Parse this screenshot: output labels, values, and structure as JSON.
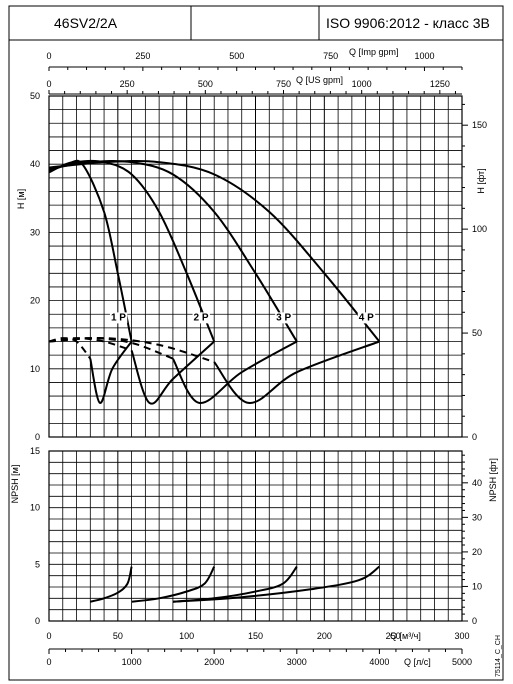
{
  "header": {
    "model": "46SV2/2A",
    "blank": "",
    "standard": "ISO 9906:2012 - класс 3B"
  },
  "axes": {
    "top_imp": {
      "label": "Q [Imp gpm]",
      "ticks": [
        0,
        250,
        500,
        750,
        1000
      ],
      "range": [
        0,
        1100
      ]
    },
    "top_us": {
      "label": "Q [US gpm]",
      "ticks": [
        0,
        250,
        500,
        750,
        1000,
        1250
      ],
      "range": [
        0,
        1320.9
      ]
    },
    "h_m": {
      "label": "H [м]",
      "ticks": [
        0,
        10,
        20,
        30,
        40,
        50
      ],
      "range": [
        0,
        50
      ]
    },
    "h_ft": {
      "label": "H [фт]",
      "ticks": [
        0,
        50,
        100,
        150
      ],
      "range": [
        0,
        164.04
      ]
    },
    "npsh_m": {
      "label": "NPSH [м]",
      "ticks": [
        0,
        5,
        10,
        15
      ],
      "range": [
        0,
        15
      ]
    },
    "npsh_ft": {
      "label": "NPSH [фт]",
      "ticks": [
        0,
        10,
        20,
        30,
        40
      ],
      "range": [
        0,
        49.21
      ]
    },
    "q_m3h": {
      "label": "Q [м³/ч]",
      "ticks": [
        0,
        50,
        100,
        150,
        200,
        250,
        300
      ],
      "range": [
        0,
        300
      ]
    },
    "q_ls": {
      "label": "Q [л/с]",
      "ticks": [
        0,
        1000,
        2000,
        3000,
        4000,
        5000
      ],
      "range": [
        0,
        5000
      ]
    }
  },
  "footnote": "75114_C_CH",
  "chart_data": [
    {
      "type": "line",
      "panel": "head",
      "xlabel": "Q [м³/ч]",
      "ylabel": "H [м]",
      "xlim": [
        0,
        300
      ],
      "ylim": [
        0,
        50
      ],
      "grid": true,
      "series": [
        {
          "name": "1 P",
          "label": "1 P",
          "label_at": [
            45,
            17.1
          ],
          "head": [
            [
              0,
              38.8
            ],
            [
              15,
              40.2
            ],
            [
              25,
              39.8
            ],
            [
              40,
              33
            ],
            [
              50,
              24
            ],
            [
              60,
              14
            ]
          ],
          "efficiency": [
            [
              0,
              14
            ],
            [
              10,
              14.5
            ],
            [
              20,
              14
            ],
            [
              30,
              11.5
            ],
            [
              37,
              5
            ],
            [
              46,
              10
            ],
            [
              60,
              14
            ]
          ],
          "npsh": [
            [
              30,
              1.7
            ],
            [
              40,
              2
            ],
            [
              50,
              2.5
            ],
            [
              57,
              3.3
            ],
            [
              60,
              4.8
            ]
          ]
        },
        {
          "name": "2 P",
          "label": "2 P",
          "label_at": [
            105,
            17.1
          ],
          "head": [
            [
              0,
              39
            ],
            [
              20,
              40.3
            ],
            [
              40,
              40.3
            ],
            [
              60,
              38.5
            ],
            [
              80,
              33
            ],
            [
              100,
              24
            ],
            [
              120,
              14
            ]
          ],
          "efficiency": [
            [
              0,
              14
            ],
            [
              20,
              14.5
            ],
            [
              40,
              14
            ],
            [
              60,
              12.7
            ],
            [
              73,
              5
            ],
            [
              90,
              8.5
            ],
            [
              120,
              14
            ]
          ],
          "npsh": [
            [
              60,
              1.7
            ],
            [
              80,
              2
            ],
            [
              100,
              2.6
            ],
            [
              113,
              3.3
            ],
            [
              120,
              4.8
            ]
          ]
        },
        {
          "name": "3 P",
          "label": "3 P",
          "label_at": [
            165,
            17.1
          ],
          "head": [
            [
              0,
              39.3
            ],
            [
              30,
              40.3
            ],
            [
              60,
              40.3
            ],
            [
              90,
              38.5
            ],
            [
              120,
              33
            ],
            [
              150,
              24
            ],
            [
              180,
              14
            ]
          ],
          "efficiency": [
            [
              0,
              14
            ],
            [
              30,
              14.5
            ],
            [
              60,
              13.8
            ],
            [
              90,
              11.5
            ],
            [
              109,
              5
            ],
            [
              140,
              9.5
            ],
            [
              180,
              14
            ]
          ],
          "npsh": [
            [
              90,
              1.7
            ],
            [
              120,
              2
            ],
            [
              150,
              2.6
            ],
            [
              170,
              3.3
            ],
            [
              180,
              4.8
            ]
          ]
        },
        {
          "name": "4 P",
          "label": "4 P",
          "label_at": [
            225,
            17.1
          ],
          "head": [
            [
              0,
              39.5
            ],
            [
              40,
              40.3
            ],
            [
              80,
              40.3
            ],
            [
              120,
              38.5
            ],
            [
              160,
              33
            ],
            [
              200,
              24
            ],
            [
              240,
              14
            ]
          ],
          "efficiency": [
            [
              0,
              14
            ],
            [
              40,
              14.5
            ],
            [
              80,
              13.5
            ],
            [
              120,
              11
            ],
            [
              145,
              5
            ],
            [
              180,
              9.5
            ],
            [
              240,
              14
            ]
          ],
          "npsh": [
            [
              90,
              1.7
            ],
            [
              140,
              2.1
            ],
            [
              190,
              2.8
            ],
            [
              225,
              3.6
            ],
            [
              240,
              4.8
            ]
          ]
        }
      ]
    }
  ]
}
